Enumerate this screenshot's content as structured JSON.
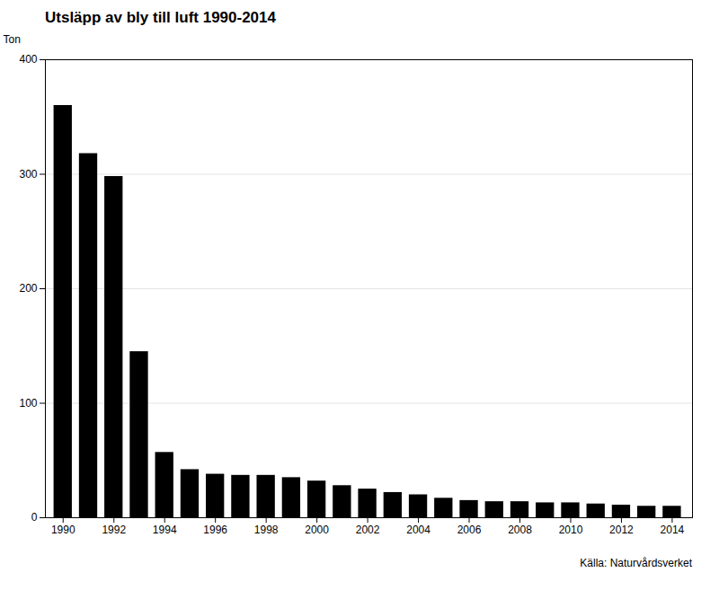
{
  "chart_data": {
    "type": "bar",
    "title": "Utsläpp av bly till luft 1990-2014",
    "source": "Källa: Naturvårdsverket",
    "x": [
      1990,
      1991,
      1992,
      1993,
      1994,
      1995,
      1996,
      1997,
      1998,
      1999,
      2000,
      2001,
      2002,
      2003,
      2004,
      2005,
      2006,
      2007,
      2008,
      2009,
      2010,
      2011,
      2012,
      2013,
      2014
    ],
    "values": [
      360,
      318,
      298,
      145,
      57,
      42,
      38,
      37,
      37,
      35,
      32,
      28,
      25,
      22,
      20,
      17,
      15,
      14,
      14,
      13,
      13,
      12,
      11,
      10,
      10
    ],
    "ylabel": "Ton",
    "xlim": [
      1989.3,
      2014.8
    ],
    "xticks": [
      1990,
      1992,
      1994,
      1996,
      1998,
      2000,
      2002,
      2004,
      2006,
      2008,
      2010,
      2012,
      2014
    ],
    "ylim": [
      0,
      400
    ],
    "yticks": [
      0,
      100,
      200,
      300,
      400
    ],
    "grid": true
  }
}
